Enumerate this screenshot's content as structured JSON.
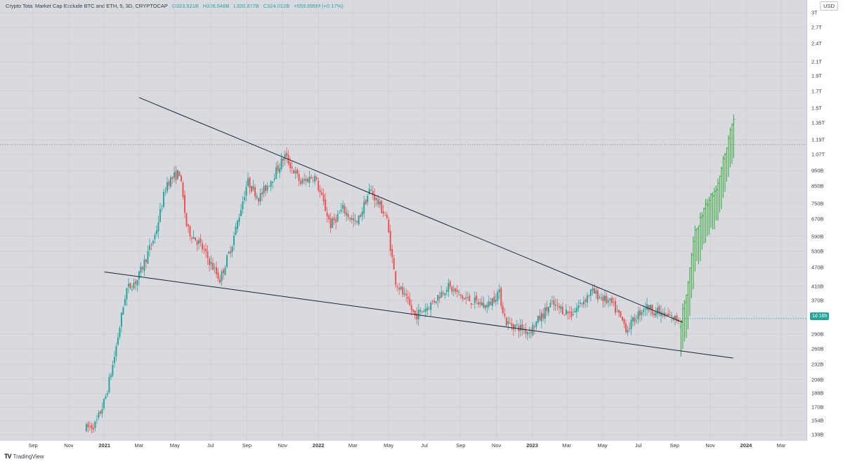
{
  "legend": {
    "symbol": "Crypto Total Market Cap Exclude BTC and ETH, 5, 3D, CRYPTOCAP",
    "open": "O323.521B",
    "high": "H326.548B",
    "low": "L320.877B",
    "close": "C324.012B",
    "change": "+559.695M (+0.17%)"
  },
  "currency_label": "USD",
  "current_price_badge": "1d 16h",
  "footer_brand": "TradingView",
  "colors": {
    "background": "#d9dae0",
    "up": "#26a69a",
    "down": "#ef5350",
    "projection": "#4caf50",
    "trendline": "#1e222d"
  },
  "chart_data": {
    "type": "candlestick",
    "y_scale": "log",
    "ylim": [
      133000000000,
      3100000000000
    ],
    "y_ticks": [
      {
        "label": "3T",
        "value": 3000000000000
      },
      {
        "label": "2.7T",
        "value": 2700000000000
      },
      {
        "label": "2.4T",
        "value": 2400000000000
      },
      {
        "label": "2.1T",
        "value": 2100000000000
      },
      {
        "label": "1.9T",
        "value": 1900000000000
      },
      {
        "label": "1.7T",
        "value": 1700000000000
      },
      {
        "label": "1.5T",
        "value": 1500000000000
      },
      {
        "label": "1.35T",
        "value": 1350000000000
      },
      {
        "label": "1.19T",
        "value": 1190000000000
      },
      {
        "label": "1.07T",
        "value": 1070000000000
      },
      {
        "label": "950B",
        "value": 950000000000
      },
      {
        "label": "850B",
        "value": 850000000000
      },
      {
        "label": "750B",
        "value": 750000000000
      },
      {
        "label": "670B",
        "value": 670000000000
      },
      {
        "label": "590B",
        "value": 590000000000
      },
      {
        "label": "530B",
        "value": 530000000000
      },
      {
        "label": "470B",
        "value": 470000000000
      },
      {
        "label": "410B",
        "value": 410000000000
      },
      {
        "label": "370B",
        "value": 370000000000
      },
      {
        "label": "290B",
        "value": 290000000000
      },
      {
        "label": "260B",
        "value": 260000000000
      },
      {
        "label": "232B",
        "value": 232000000000
      },
      {
        "label": "208B",
        "value": 208000000000
      },
      {
        "label": "188B",
        "value": 188000000000
      },
      {
        "label": "170B",
        "value": 170000000000
      },
      {
        "label": "154B",
        "value": 154000000000
      },
      {
        "label": "139B",
        "value": 139000000000
      }
    ],
    "x_ticks": [
      {
        "label": "Sep",
        "date": "2020-09-01",
        "bold": false
      },
      {
        "label": "Nov",
        "date": "2020-11-01",
        "bold": false
      },
      {
        "label": "2021",
        "date": "2021-01-01",
        "bold": true
      },
      {
        "label": "Mar",
        "date": "2021-03-01",
        "bold": false
      },
      {
        "label": "May",
        "date": "2021-05-01",
        "bold": false
      },
      {
        "label": "Jul",
        "date": "2021-07-01",
        "bold": false
      },
      {
        "label": "Sep",
        "date": "2021-09-01",
        "bold": false
      },
      {
        "label": "Nov",
        "date": "2021-11-01",
        "bold": false
      },
      {
        "label": "2022",
        "date": "2022-01-01",
        "bold": true
      },
      {
        "label": "Mar",
        "date": "2022-03-01",
        "bold": false
      },
      {
        "label": "May",
        "date": "2022-05-01",
        "bold": false
      },
      {
        "label": "Jul",
        "date": "2022-07-01",
        "bold": false
      },
      {
        "label": "Sep",
        "date": "2022-09-01",
        "bold": false
      },
      {
        "label": "Nov",
        "date": "2022-11-01",
        "bold": false
      },
      {
        "label": "2023",
        "date": "2023-01-01",
        "bold": true
      },
      {
        "label": "Mar",
        "date": "2023-03-01",
        "bold": false
      },
      {
        "label": "May",
        "date": "2023-05-01",
        "bold": false
      },
      {
        "label": "Jul",
        "date": "2023-07-01",
        "bold": false
      },
      {
        "label": "Sep",
        "date": "2023-09-01",
        "bold": false
      },
      {
        "label": "Nov",
        "date": "2023-11-01",
        "bold": false
      },
      {
        "label": "2024",
        "date": "2024-01-01",
        "bold": true
      },
      {
        "label": "Mar",
        "date": "2024-03-01",
        "bold": false
      }
    ],
    "price_path": [
      [
        "2020-12-01",
        145000000000
      ],
      [
        "2020-12-20",
        150000000000
      ],
      [
        "2021-01-05",
        180000000000
      ],
      [
        "2021-01-20",
        240000000000
      ],
      [
        "2021-02-10",
        400000000000
      ],
      [
        "2021-03-01",
        430000000000
      ],
      [
        "2021-04-01",
        600000000000
      ],
      [
        "2021-04-20",
        870000000000
      ],
      [
        "2021-05-12",
        940000000000
      ],
      [
        "2021-05-25",
        620000000000
      ],
      [
        "2021-06-15",
        560000000000
      ],
      [
        "2021-07-20",
        430000000000
      ],
      [
        "2021-08-10",
        560000000000
      ],
      [
        "2021-09-05",
        880000000000
      ],
      [
        "2021-09-25",
        780000000000
      ],
      [
        "2021-10-20",
        920000000000
      ],
      [
        "2021-11-08",
        1060000000000
      ],
      [
        "2021-12-05",
        870000000000
      ],
      [
        "2021-12-28",
        920000000000
      ],
      [
        "2022-01-25",
        640000000000
      ],
      [
        "2022-02-15",
        720000000000
      ],
      [
        "2022-03-10",
        640000000000
      ],
      [
        "2022-04-02",
        830000000000
      ],
      [
        "2022-04-30",
        680000000000
      ],
      [
        "2022-05-15",
        430000000000
      ],
      [
        "2022-06-18",
        330000000000
      ],
      [
        "2022-07-15",
        360000000000
      ],
      [
        "2022-08-12",
        410000000000
      ],
      [
        "2022-09-10",
        375000000000
      ],
      [
        "2022-10-20",
        355000000000
      ],
      [
        "2022-11-08",
        395000000000
      ],
      [
        "2022-11-20",
        315000000000
      ],
      [
        "2022-12-30",
        295000000000
      ],
      [
        "2023-02-05",
        360000000000
      ],
      [
        "2023-03-12",
        335000000000
      ],
      [
        "2023-04-15",
        395000000000
      ],
      [
        "2023-05-20",
        360000000000
      ],
      [
        "2023-06-15",
        300000000000
      ],
      [
        "2023-07-15",
        355000000000
      ],
      [
        "2023-08-20",
        330000000000
      ],
      [
        "2023-09-10",
        322000000000
      ]
    ],
    "projection_path": [
      [
        "2023-09-12",
        305000000000
      ],
      [
        "2023-09-25",
        390000000000
      ],
      [
        "2023-10-08",
        600000000000
      ],
      [
        "2023-10-25",
        720000000000
      ],
      [
        "2023-11-15",
        850000000000
      ],
      [
        "2023-12-05",
        1200000000000
      ],
      [
        "2023-12-12",
        1380000000000
      ]
    ],
    "trendlines": [
      {
        "name": "upper",
        "from": [
          "2021-03-01",
          1620000000000
        ],
        "to": [
          "2023-09-15",
          315000000000
        ]
      },
      {
        "name": "lower",
        "from": [
          "2021-01-01",
          455000000000
        ],
        "to": [
          "2023-12-10",
          243000000000
        ]
      }
    ],
    "horizontal_level": 1150000000000,
    "last_close": 324000000000
  }
}
